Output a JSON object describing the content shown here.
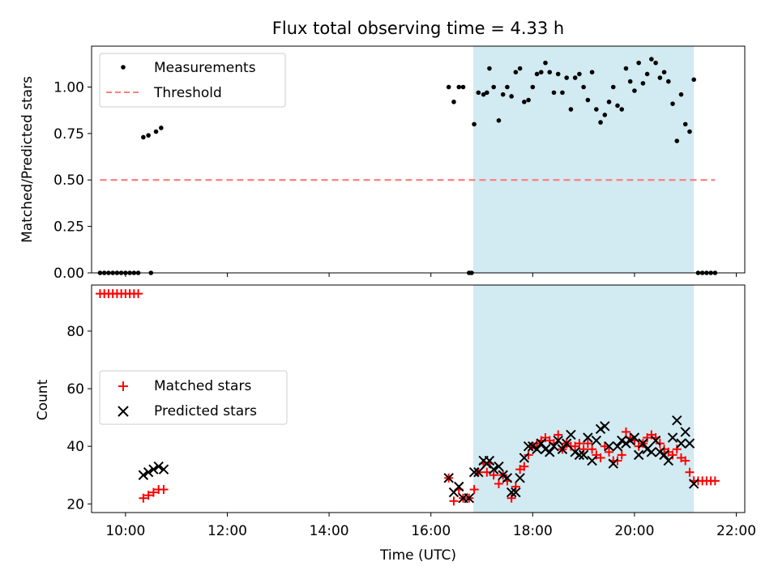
{
  "title": "Flux total observing time = 4.33 h",
  "colors": {
    "shade": "#add8e6",
    "threshold": "#ff7f7f",
    "measurement": "#000000",
    "matched": "#ff0000",
    "predicted": "#000000"
  },
  "chart_data": [
    {
      "type": "scatter",
      "panel": "top",
      "ylabel": "Matched/Predicted stars",
      "xlim": [
        "09:20",
        "22:10"
      ],
      "ylim": [
        0,
        1.22
      ],
      "yticks": [
        0.0,
        0.25,
        0.5,
        0.75,
        1.0
      ],
      "xticks": [
        "10:00",
        "12:00",
        "14:00",
        "16:00",
        "18:00",
        "20:00",
        "22:00"
      ],
      "shaded_span": [
        "16:50",
        "21:10"
      ],
      "legend": {
        "placement": "top-left",
        "entries": [
          "Measurements",
          "Threshold"
        ]
      },
      "threshold": {
        "name": "Threshold",
        "y": 0.5,
        "x": [
          "09:30",
          "21:35"
        ]
      },
      "series": [
        {
          "name": "Measurements",
          "points": [
            [
              "09:30",
              0
            ],
            [
              "09:35",
              0
            ],
            [
              "09:40",
              0
            ],
            [
              "09:45",
              0
            ],
            [
              "09:50",
              0
            ],
            [
              "09:55",
              0
            ],
            [
              "10:00",
              0
            ],
            [
              "10:05",
              0
            ],
            [
              "10:10",
              0
            ],
            [
              "10:15",
              0
            ],
            [
              "10:30",
              0
            ],
            [
              "10:21",
              0.73
            ],
            [
              "10:27",
              0.74
            ],
            [
              "10:36",
              0.76
            ],
            [
              "10:42",
              0.78
            ],
            [
              "16:21",
              1.0
            ],
            [
              "16:27",
              0.92
            ],
            [
              "16:33",
              1.0
            ],
            [
              "16:38",
              1.0
            ],
            [
              "16:45",
              0
            ],
            [
              "16:48",
              0
            ],
            [
              "16:51",
              0.8
            ],
            [
              "16:56",
              0.97
            ],
            [
              "17:02",
              0.96
            ],
            [
              "17:06",
              0.97
            ],
            [
              "17:09",
              1.1
            ],
            [
              "17:14",
              1.0
            ],
            [
              "17:20",
              0.82
            ],
            [
              "17:25",
              0.96
            ],
            [
              "17:30",
              1.0
            ],
            [
              "17:35",
              0.95
            ],
            [
              "17:40",
              1.08
            ],
            [
              "17:45",
              1.1
            ],
            [
              "17:50",
              0.92
            ],
            [
              "17:55",
              0.93
            ],
            [
              "18:00",
              1.0
            ],
            [
              "18:05",
              1.07
            ],
            [
              "18:10",
              1.08
            ],
            [
              "18:15",
              1.13
            ],
            [
              "18:20",
              1.08
            ],
            [
              "18:25",
              0.97
            ],
            [
              "18:30",
              1.07
            ],
            [
              "18:35",
              0.97
            ],
            [
              "18:40",
              1.05
            ],
            [
              "18:45",
              0.88
            ],
            [
              "18:50",
              1.05
            ],
            [
              "18:55",
              1.07
            ],
            [
              "19:00",
              1.0
            ],
            [
              "19:05",
              0.93
            ],
            [
              "19:10",
              1.08
            ],
            [
              "19:15",
              0.88
            ],
            [
              "19:20",
              0.81
            ],
            [
              "19:25",
              0.85
            ],
            [
              "19:30",
              0.92
            ],
            [
              "19:35",
              1.0
            ],
            [
              "19:40",
              0.9
            ],
            [
              "19:45",
              0.88
            ],
            [
              "19:50",
              1.1
            ],
            [
              "19:55",
              1.03
            ],
            [
              "20:00",
              0.98
            ],
            [
              "20:05",
              1.13
            ],
            [
              "20:10",
              1.02
            ],
            [
              "20:15",
              1.07
            ],
            [
              "20:20",
              1.15
            ],
            [
              "20:25",
              1.13
            ],
            [
              "20:30",
              1.05
            ],
            [
              "20:35",
              1.08
            ],
            [
              "20:40",
              1.03
            ],
            [
              "20:45",
              0.91
            ],
            [
              "20:50",
              0.71
            ],
            [
              "20:55",
              0.96
            ],
            [
              "21:00",
              0.8
            ],
            [
              "21:05",
              0.76
            ],
            [
              "21:10",
              1.04
            ],
            [
              "21:15",
              0
            ],
            [
              "21:20",
              0
            ],
            [
              "21:25",
              0
            ],
            [
              "21:30",
              0
            ],
            [
              "21:35",
              0
            ]
          ]
        }
      ]
    },
    {
      "type": "scatter",
      "panel": "bottom",
      "xlabel": "Time (UTC)",
      "ylabel": "Count",
      "xlim": [
        "09:20",
        "22:10"
      ],
      "ylim": [
        17,
        96
      ],
      "yticks": [
        20,
        40,
        60,
        80
      ],
      "xticks": [
        "10:00",
        "12:00",
        "14:00",
        "16:00",
        "18:00",
        "20:00",
        "22:00"
      ],
      "shaded_span": [
        "16:50",
        "21:10"
      ],
      "legend": {
        "placement": "center-left",
        "entries": [
          "Matched stars",
          "Predicted stars"
        ]
      },
      "series": [
        {
          "name": "Matched stars",
          "marker": "+",
          "points": [
            [
              "09:30",
              93
            ],
            [
              "09:35",
              93
            ],
            [
              "09:40",
              93
            ],
            [
              "09:45",
              93
            ],
            [
              "09:50",
              93
            ],
            [
              "09:55",
              93
            ],
            [
              "10:00",
              93
            ],
            [
              "10:05",
              93
            ],
            [
              "10:10",
              93
            ],
            [
              "10:15",
              93
            ],
            [
              "10:21",
              22
            ],
            [
              "10:27",
              23
            ],
            [
              "10:33",
              24
            ],
            [
              "10:39",
              25
            ],
            [
              "10:45",
              25
            ],
            [
              "16:21",
              29
            ],
            [
              "16:27",
              21
            ],
            [
              "16:33",
              25
            ],
            [
              "16:38",
              22
            ],
            [
              "16:45",
              22
            ],
            [
              "16:51",
              25
            ],
            [
              "16:56",
              31
            ],
            [
              "17:02",
              34
            ],
            [
              "17:06",
              31
            ],
            [
              "17:09",
              34
            ],
            [
              "17:14",
              30
            ],
            [
              "17:20",
              27
            ],
            [
              "17:25",
              30
            ],
            [
              "17:30",
              28
            ],
            [
              "17:35",
              22
            ],
            [
              "17:40",
              26
            ],
            [
              "17:45",
              32
            ],
            [
              "17:50",
              33
            ],
            [
              "17:55",
              37
            ],
            [
              "18:00",
              40
            ],
            [
              "18:05",
              41
            ],
            [
              "18:10",
              42
            ],
            [
              "18:15",
              43
            ],
            [
              "18:20",
              42
            ],
            [
              "18:25",
              41
            ],
            [
              "18:30",
              44
            ],
            [
              "18:35",
              39
            ],
            [
              "18:40",
              41
            ],
            [
              "18:45",
              40
            ],
            [
              "18:50",
              40
            ],
            [
              "18:55",
              41
            ],
            [
              "19:00",
              39
            ],
            [
              "19:05",
              41
            ],
            [
              "19:10",
              39
            ],
            [
              "19:15",
              37
            ],
            [
              "19:20",
              36
            ],
            [
              "19:25",
              40
            ],
            [
              "19:30",
              38
            ],
            [
              "19:35",
              35
            ],
            [
              "19:40",
              35
            ],
            [
              "19:45",
              37
            ],
            [
              "19:50",
              45
            ],
            [
              "19:55",
              43
            ],
            [
              "20:00",
              42
            ],
            [
              "20:05",
              40
            ],
            [
              "20:10",
              41
            ],
            [
              "20:15",
              43
            ],
            [
              "20:20",
              44
            ],
            [
              "20:25",
              43
            ],
            [
              "20:30",
              41
            ],
            [
              "20:35",
              39
            ],
            [
              "20:40",
              38
            ],
            [
              "20:45",
              37
            ],
            [
              "20:50",
              39
            ],
            [
              "20:55",
              36
            ],
            [
              "21:00",
              35
            ],
            [
              "21:05",
              31
            ],
            [
              "21:10",
              28
            ],
            [
              "21:15",
              28
            ],
            [
              "21:20",
              28
            ],
            [
              "21:25",
              28
            ],
            [
              "21:30",
              28
            ],
            [
              "21:35",
              28
            ]
          ]
        },
        {
          "name": "Predicted stars",
          "marker": "x",
          "points": [
            [
              "10:21",
              30
            ],
            [
              "10:27",
              31
            ],
            [
              "10:33",
              32
            ],
            [
              "10:39",
              33
            ],
            [
              "10:45",
              32
            ],
            [
              "16:21",
              29
            ],
            [
              "16:27",
              24
            ],
            [
              "16:33",
              26
            ],
            [
              "16:38",
              22
            ],
            [
              "16:45",
              22
            ],
            [
              "16:51",
              31
            ],
            [
              "16:56",
              31
            ],
            [
              "17:02",
              35
            ],
            [
              "17:06",
              34
            ],
            [
              "17:09",
              35
            ],
            [
              "17:14",
              32
            ],
            [
              "17:20",
              33
            ],
            [
              "17:25",
              30
            ],
            [
              "17:30",
              29
            ],
            [
              "17:35",
              24
            ],
            [
              "17:40",
              24
            ],
            [
              "17:45",
              29
            ],
            [
              "17:50",
              36
            ],
            [
              "17:55",
              40
            ],
            [
              "18:00",
              40
            ],
            [
              "18:05",
              39
            ],
            [
              "18:10",
              41
            ],
            [
              "18:15",
              39
            ],
            [
              "18:20",
              38
            ],
            [
              "18:25",
              40
            ],
            [
              "18:30",
              42
            ],
            [
              "18:35",
              39
            ],
            [
              "18:40",
              41
            ],
            [
              "18:45",
              44
            ],
            [
              "18:50",
              38
            ],
            [
              "18:55",
              37
            ],
            [
              "19:00",
              37
            ],
            [
              "19:05",
              43
            ],
            [
              "19:10",
              35
            ],
            [
              "19:15",
              42
            ],
            [
              "19:20",
              46
            ],
            [
              "19:25",
              47
            ],
            [
              "19:30",
              40
            ],
            [
              "19:35",
              34
            ],
            [
              "19:40",
              40
            ],
            [
              "19:45",
              42
            ],
            [
              "19:50",
              41
            ],
            [
              "19:55",
              42
            ],
            [
              "20:00",
              43
            ],
            [
              "20:05",
              37
            ],
            [
              "20:10",
              41
            ],
            [
              "20:15",
              39
            ],
            [
              "20:20",
              38
            ],
            [
              "20:25",
              42
            ],
            [
              "20:30",
              38
            ],
            [
              "20:35",
              37
            ],
            [
              "20:40",
              35
            ],
            [
              "20:45",
              43
            ],
            [
              "20:50",
              49
            ],
            [
              "20:55",
              41
            ],
            [
              "21:00",
              45
            ],
            [
              "21:05",
              41
            ],
            [
              "21:10",
              27
            ]
          ]
        }
      ]
    }
  ]
}
